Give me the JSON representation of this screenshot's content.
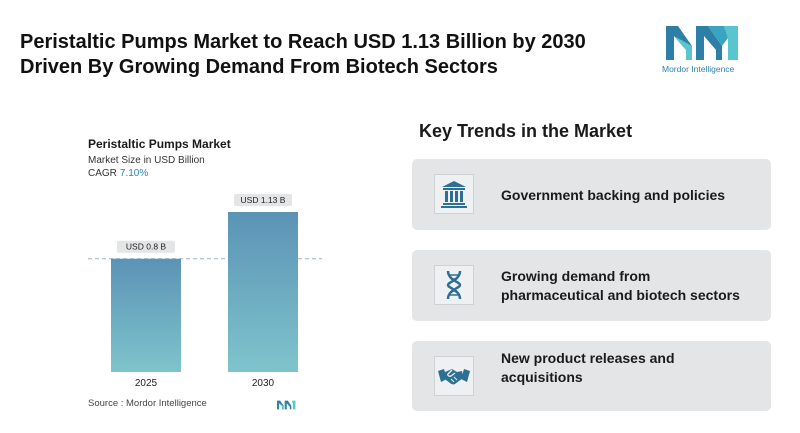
{
  "headline": {
    "line1": "Peristaltic Pumps Market to Reach USD 1.13 Billion by 2030",
    "line2": "Driven By Growing Demand From Biotech Sectors"
  },
  "logo": {
    "text": "Mordor Intelligence",
    "icon": "mordor-intelligence-logo-icon"
  },
  "chart": {
    "title": "Peristaltic Pumps Market",
    "subtitle": "Market Size in USD Billion",
    "cagr_label": "CAGR",
    "cagr_value": "7.10%",
    "source": "Source :  Mordor Intelligence"
  },
  "chart_data": {
    "type": "bar",
    "categories": [
      "2025",
      "2030"
    ],
    "values": [
      0.8,
      1.13
    ],
    "data_labels": [
      "USD 0.8 B",
      "USD 1.13 B"
    ],
    "title": "Peristaltic Pumps Market",
    "subtitle": "Market Size in USD Billion",
    "ylim": [
      0,
      1.13
    ],
    "grid": false,
    "reference_line": "dashed line at 2025 value",
    "colors": {
      "bar_top": "#5b93b6",
      "bar_bottom": "#7fc4cc",
      "label_bg": "#e4e5e6",
      "dash": "#9bb4c2"
    }
  },
  "trends": {
    "title": "Key Trends in the Market",
    "items": [
      {
        "icon": "government-building-icon",
        "lines": [
          "Government backing and policies"
        ]
      },
      {
        "icon": "dna-icon",
        "lines": [
          "Growing demand from",
          "pharmaceutical and biotech sectors"
        ]
      },
      {
        "icon": "handshake-icon",
        "lines": [
          "New product releases and",
          "acquisitions"
        ]
      }
    ]
  },
  "colors": {
    "accent": "#2b86b3",
    "logo_dark": "#2e7fa8",
    "logo_light": "#58c5cf",
    "card_bg": "#e4e5e6",
    "icon_color": "#2e6f94"
  }
}
